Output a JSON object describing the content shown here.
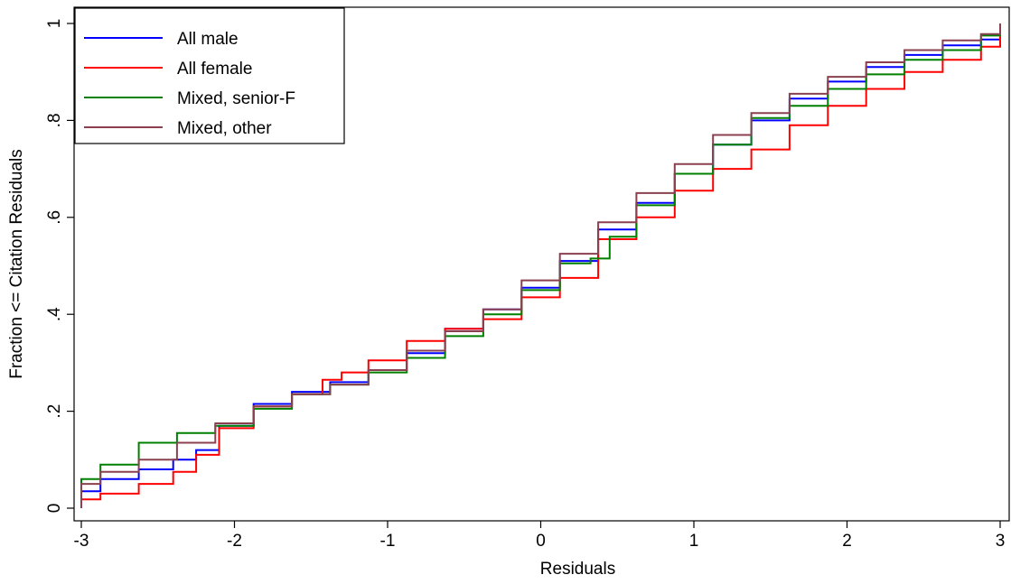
{
  "chart_data": {
    "type": "line",
    "title": "",
    "xlabel": "Residuals",
    "ylabel": "Fraction <= Citation Residuals",
    "xlim": [
      -3,
      3
    ],
    "ylim": [
      0,
      1
    ],
    "x_ticks": [
      -3,
      -2,
      -1,
      0,
      1,
      2,
      3
    ],
    "x_tick_labels": [
      "-3",
      "-2",
      "-1",
      "0",
      "1",
      "2",
      "3"
    ],
    "y_ticks": [
      0,
      0.2,
      0.4,
      0.6,
      0.8,
      1
    ],
    "y_tick_labels": [
      "0",
      ".2",
      ".4",
      ".6",
      ".8",
      "1"
    ],
    "grid": false,
    "legend_position": "top-left",
    "series": [
      {
        "name": "All male",
        "color": "#0000ff",
        "x": [
          -3,
          -2.75,
          -2.5,
          -2.3,
          -2.2,
          -2.0,
          -1.75,
          -1.5,
          -1.25,
          -1.0,
          -0.75,
          -0.5,
          -0.25,
          0.0,
          0.25,
          0.5,
          0.75,
          1.0,
          1.25,
          1.5,
          1.75,
          2.0,
          2.25,
          2.5,
          2.75,
          3.0
        ],
        "y": [
          0.035,
          0.06,
          0.08,
          0.1,
          0.12,
          0.17,
          0.215,
          0.24,
          0.26,
          0.285,
          0.32,
          0.37,
          0.41,
          0.455,
          0.51,
          0.575,
          0.63,
          0.69,
          0.75,
          0.8,
          0.845,
          0.88,
          0.91,
          0.935,
          0.955,
          0.967
        ]
      },
      {
        "name": "All female",
        "color": "#ff0000",
        "x": [
          -3,
          -2.75,
          -2.5,
          -2.3,
          -2.2,
          -2.0,
          -1.75,
          -1.5,
          -1.35,
          -1.25,
          -1.0,
          -0.75,
          -0.5,
          -0.25,
          0.0,
          0.25,
          0.5,
          0.75,
          1.0,
          1.25,
          1.5,
          1.75,
          2.0,
          2.25,
          2.5,
          2.75,
          3.0
        ],
        "y": [
          0.018,
          0.03,
          0.05,
          0.075,
          0.11,
          0.165,
          0.21,
          0.235,
          0.265,
          0.28,
          0.305,
          0.345,
          0.37,
          0.39,
          0.435,
          0.475,
          0.555,
          0.6,
          0.655,
          0.7,
          0.74,
          0.79,
          0.83,
          0.865,
          0.9,
          0.925,
          0.952
        ]
      },
      {
        "name": "Mixed, senior-F",
        "color": "#008000",
        "x": [
          -3,
          -2.75,
          -2.5,
          -2.25,
          -2.0,
          -1.75,
          -1.5,
          -1.25,
          -1.0,
          -0.75,
          -0.5,
          -0.25,
          0.0,
          0.25,
          0.4,
          0.5,
          0.75,
          1.0,
          1.25,
          1.5,
          1.75,
          2.0,
          2.25,
          2.5,
          2.75,
          3.0
        ],
        "y": [
          0.06,
          0.09,
          0.135,
          0.155,
          0.17,
          0.205,
          0.235,
          0.255,
          0.28,
          0.31,
          0.355,
          0.4,
          0.45,
          0.505,
          0.515,
          0.56,
          0.625,
          0.69,
          0.75,
          0.805,
          0.83,
          0.865,
          0.895,
          0.925,
          0.945,
          0.975
        ]
      },
      {
        "name": "Mixed, other",
        "color": "#8b4050",
        "x": [
          -3,
          -2.75,
          -2.5,
          -2.25,
          -2.0,
          -1.75,
          -1.5,
          -1.25,
          -1.0,
          -0.75,
          -0.5,
          -0.25,
          0.0,
          0.25,
          0.5,
          0.75,
          1.0,
          1.25,
          1.5,
          1.75,
          2.0,
          2.25,
          2.5,
          2.75,
          3.0
        ],
        "y": [
          0.05,
          0.075,
          0.1,
          0.135,
          0.175,
          0.21,
          0.235,
          0.255,
          0.285,
          0.325,
          0.365,
          0.41,
          0.47,
          0.525,
          0.59,
          0.65,
          0.71,
          0.77,
          0.815,
          0.855,
          0.89,
          0.92,
          0.945,
          0.965,
          0.978
        ]
      }
    ]
  }
}
